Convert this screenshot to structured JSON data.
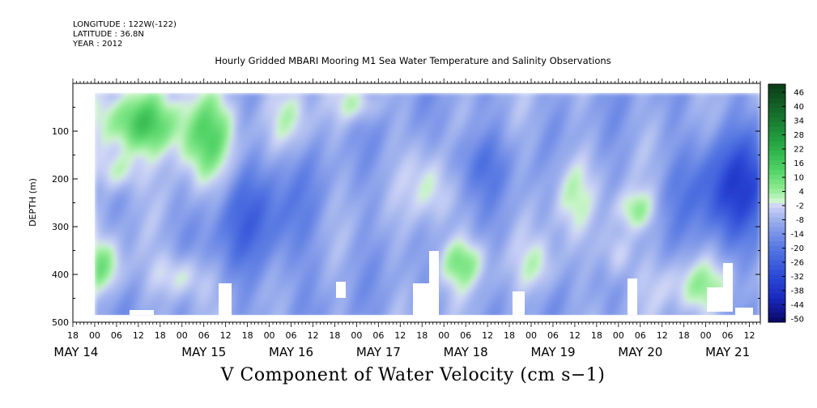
{
  "header": {
    "longitude": "LONGITUDE : 122W(-122)",
    "latitude": "LATITUDE : 36.8N",
    "year": "YEAR : 2012"
  },
  "colors": {
    "positive_dark": "#0a3d16",
    "positive_light": "#c8f5c8",
    "negative_light": "#d4d8f6",
    "negative_dark": "#0a0a70",
    "missing": "#ffffff"
  },
  "chart_data": {
    "type": "heatmap",
    "title": "Hourly Gridded MBARI Mooring M1 Sea Water Temperature and Salinity Observations",
    "xlabel": "V Component of Water Velocity (cm s−1)",
    "ylabel": "DEPTH (m)",
    "y_axis": {
      "range": [
        0,
        500
      ],
      "inverted": true,
      "ticks": [
        100,
        200,
        300,
        400,
        500
      ]
    },
    "x_axis": {
      "hour_ticks": [
        "18",
        "00",
        "06",
        "12",
        "18",
        "00",
        "06",
        "12",
        "18",
        "00",
        "06",
        "12",
        "18",
        "00",
        "06",
        "12",
        "18",
        "00",
        "06",
        "12",
        "18",
        "00",
        "06",
        "12",
        "18",
        "00",
        "06",
        "12",
        "18",
        "00",
        "06",
        "12"
      ],
      "day_labels": [
        "MAY 14",
        "MAY 15",
        "MAY 16",
        "MAY 17",
        "MAY 18",
        "MAY 19",
        "MAY 20",
        "MAY 21"
      ],
      "start": "2012-05-14 18:00",
      "end": "2012-05-21 15:00"
    },
    "colorbar": {
      "labels": [
        "46",
        "40",
        "34",
        "28",
        "22",
        "16",
        "10",
        "4",
        "-2",
        "-8",
        "-14",
        "-20",
        "-26",
        "-32",
        "-38",
        "-44",
        "-50"
      ],
      "range": [
        -50,
        50
      ]
    },
    "data_region": {
      "depth_top": 20,
      "depth_bottom": 485,
      "first_hour": "2012-05-15 00:00"
    }
  }
}
